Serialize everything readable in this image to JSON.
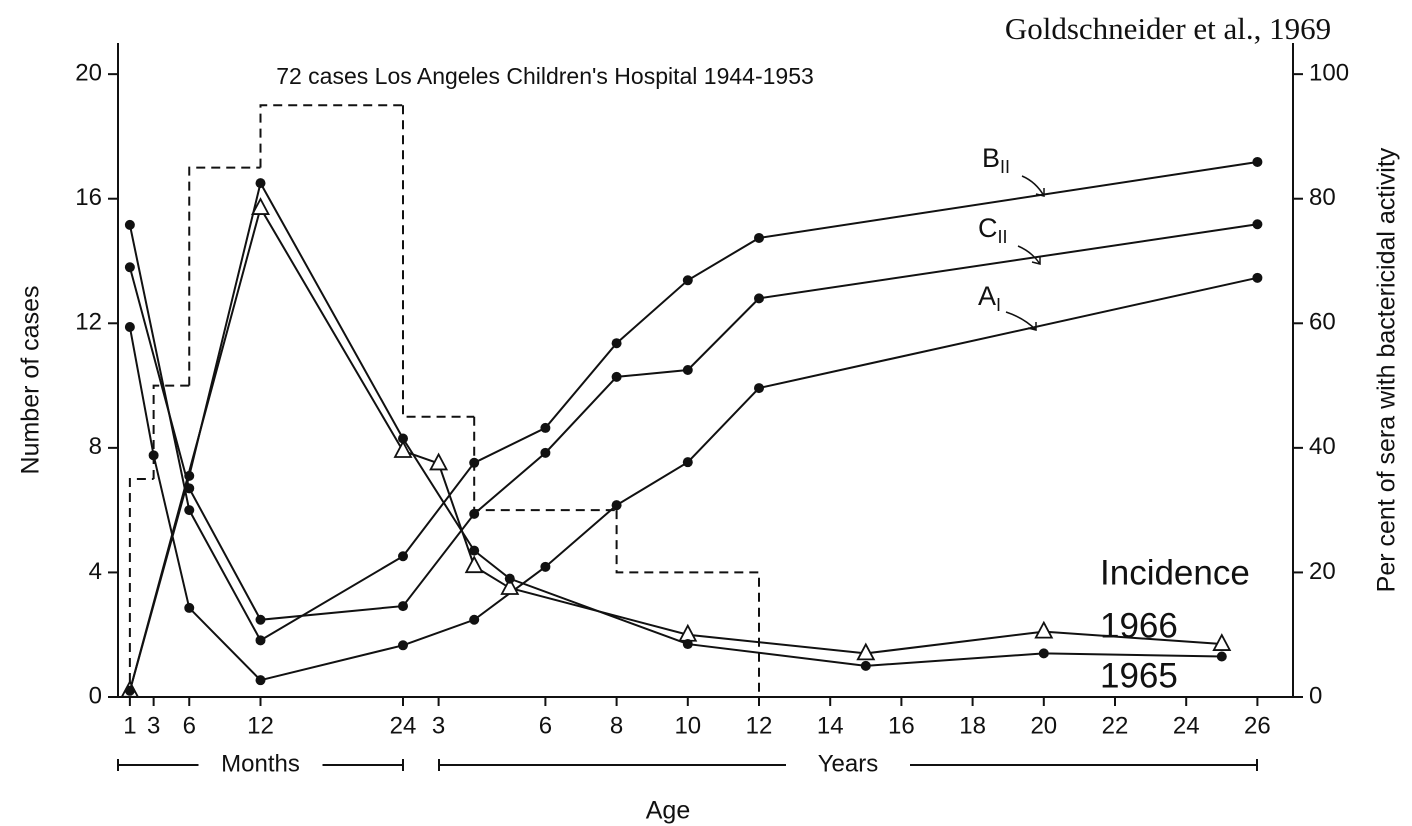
{
  "chart_data": {
    "type": "line",
    "title": "72 cases Los Angeles Children's Hospital 1944-1953",
    "source": "Goldschneider et al., 1969",
    "x_label": "Age",
    "y_label": "Number of cases",
    "y2_label": "Per cent of sera with bactericidal activity",
    "legend_title": "Incidence",
    "x_segments": [
      {
        "label": "Months",
        "xlim": [
          0,
          24
        ]
      },
      {
        "label": "Years",
        "xlim": [
          24,
          324
        ]
      }
    ],
    "xlim": [
      0,
      324
    ],
    "xticks": [
      1,
      3,
      6,
      12,
      24,
      {
        "value": 36,
        "label": "3"
      },
      {
        "value": 72,
        "label": "6"
      },
      {
        "value": 96,
        "label": "8"
      },
      {
        "value": 120,
        "label": "10"
      },
      {
        "value": 144,
        "label": "12"
      },
      {
        "value": 168,
        "label": "14"
      },
      {
        "value": 192,
        "label": "16"
      },
      {
        "value": 216,
        "label": "18"
      },
      {
        "value": 240,
        "label": "20"
      },
      {
        "value": 264,
        "label": "22"
      },
      {
        "value": 288,
        "label": "24"
      },
      {
        "value": 312,
        "label": "26"
      }
    ],
    "ylim": [
      0,
      21
    ],
    "yticks": [
      0,
      4,
      8,
      12,
      16,
      20
    ],
    "y2lim": [
      0,
      105
    ],
    "y2ticks": [
      0,
      20,
      40,
      60,
      80,
      100
    ],
    "grid": false,
    "histogram": {
      "bins": [
        1,
        3,
        6,
        12,
        24,
        48,
        96,
        144
      ],
      "values": [
        7,
        10,
        17,
        19,
        9,
        6,
        4
      ],
      "color": "#111111",
      "dashed": true
    },
    "series": [
      {
        "name": "B",
        "subscript": "II",
        "axis": "y2",
        "marker": "circle",
        "color": "#111111",
        "x": [
          1,
          6,
          12,
          24,
          48,
          72,
          96,
          120,
          144,
          312
        ],
        "values": [
          75.8,
          30,
          9.1,
          22.6,
          37.6,
          43.2,
          56.8,
          66.9,
          73.7,
          85.9
        ]
      },
      {
        "name": "C",
        "subscript": "II",
        "axis": "y2",
        "marker": "circle",
        "color": "#111111",
        "x": [
          1,
          6,
          12,
          24,
          48,
          72,
          96,
          120,
          144,
          312
        ],
        "values": [
          69,
          33.5,
          12.4,
          14.6,
          29.4,
          39.2,
          51.4,
          52.5,
          64,
          75.9
        ]
      },
      {
        "name": "A",
        "subscript": "I",
        "axis": "y2",
        "marker": "circle",
        "color": "#111111",
        "x": [
          1,
          3,
          6,
          12,
          24,
          48,
          72,
          96,
          120,
          144,
          312
        ],
        "values": [
          59.4,
          38.8,
          14.3,
          2.7,
          8.3,
          12.4,
          20.9,
          30.8,
          37.7,
          49.6,
          67.3
        ]
      },
      {
        "name": "1966",
        "axis": "y",
        "marker": "triangle",
        "color": "#111111",
        "x": [
          1,
          12,
          24,
          36,
          48,
          60,
          120,
          180,
          240,
          300
        ],
        "values": [
          0.2,
          15.7,
          7.9,
          7.5,
          4.2,
          3.5,
          2.0,
          1.4,
          2.1,
          1.7
        ]
      },
      {
        "name": "1965",
        "axis": "y",
        "marker": "circle",
        "color": "#111111",
        "x": [
          1,
          6,
          12,
          24,
          48,
          60,
          120,
          180,
          240,
          300
        ],
        "values": [
          0.2,
          7.1,
          16.5,
          8.3,
          4.7,
          3.8,
          1.7,
          1.0,
          1.4,
          1.3
        ]
      }
    ]
  }
}
